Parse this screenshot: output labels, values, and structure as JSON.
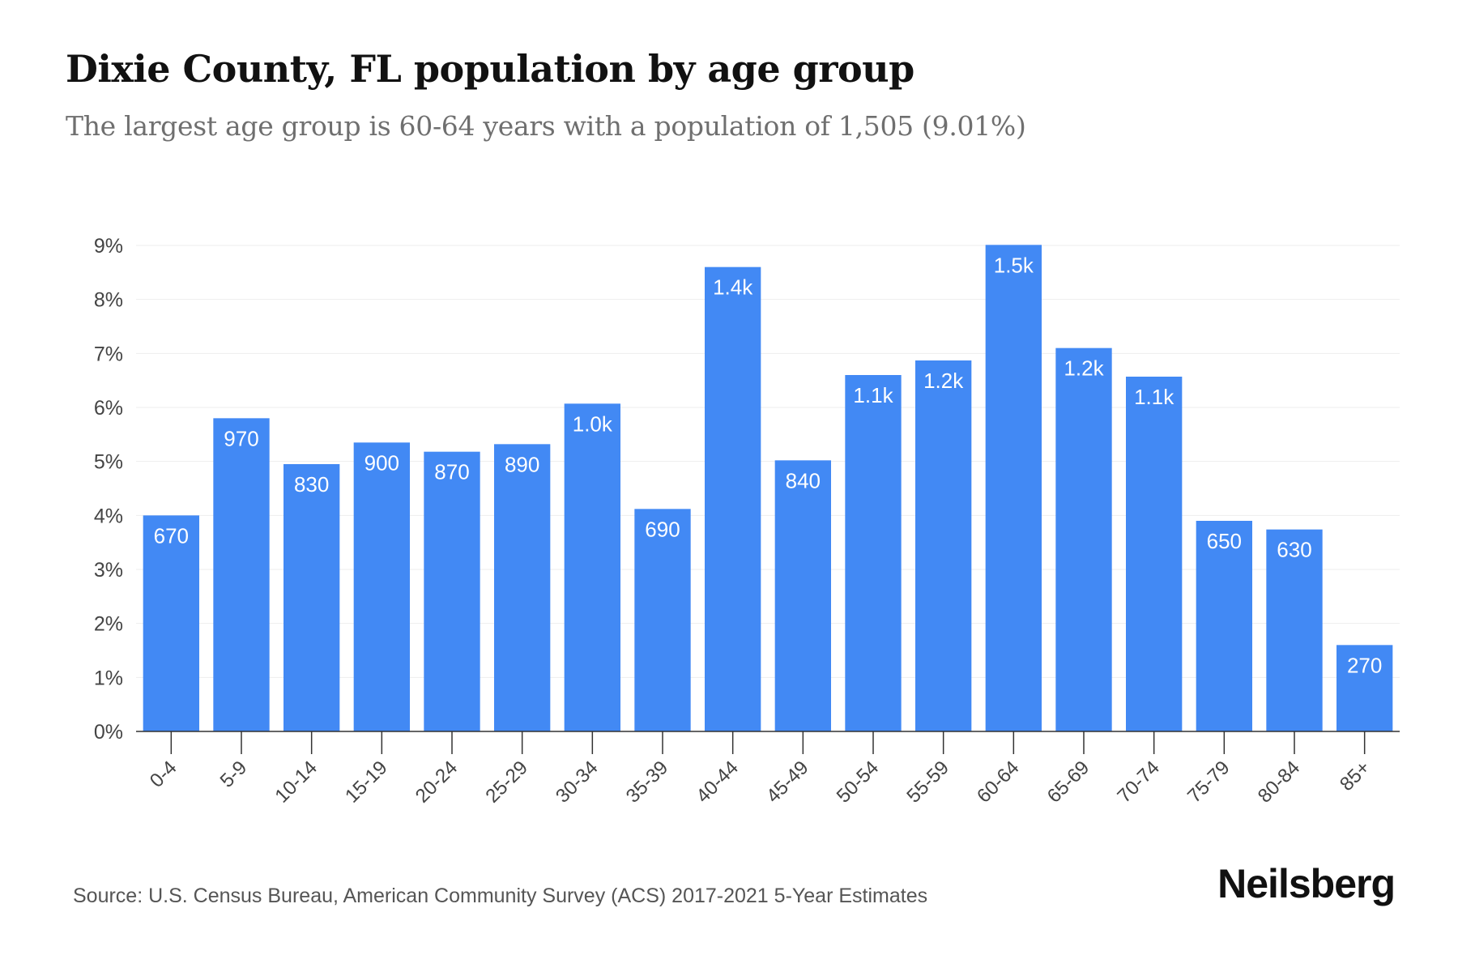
{
  "header": {
    "title": "Dixie County, FL population by age group",
    "subtitle": "The largest age group is 60-64 years with a population of 1,505 (9.01%)"
  },
  "footer": {
    "source": "Source: U.S. Census Bureau, American Community Survey (ACS) 2017-2021 5-Year Estimates",
    "brand": "Neilsberg"
  },
  "colors": {
    "bar": "#4289f4",
    "bar_label": "#ffffff",
    "axis": "#333333",
    "grid": "#eeeeee",
    "tick_text": "#444444"
  },
  "chart_data": {
    "type": "bar",
    "title": "Dixie County, FL population by age group",
    "subtitle": "The largest age group is 60-64 years with a population of 1,505 (9.01%)",
    "categories": [
      "0-4",
      "5-9",
      "10-14",
      "15-19",
      "20-24",
      "25-29",
      "30-34",
      "35-39",
      "40-44",
      "45-49",
      "50-54",
      "55-59",
      "60-64",
      "65-69",
      "70-74",
      "75-79",
      "80-84",
      "85+"
    ],
    "values": [
      4.0,
      5.8,
      4.95,
      5.35,
      5.18,
      5.32,
      6.07,
      4.12,
      8.6,
      5.02,
      6.6,
      6.87,
      9.01,
      7.1,
      6.57,
      3.9,
      3.74,
      1.6
    ],
    "data_labels": [
      "670",
      "970",
      "830",
      "900",
      "870",
      "890",
      "1.0k",
      "690",
      "1.4k",
      "840",
      "1.1k",
      "1.2k",
      "1.5k",
      "1.2k",
      "1.1k",
      "650",
      "630",
      "270"
    ],
    "y_ticks": [
      "0%",
      "1%",
      "2%",
      "3%",
      "4%",
      "5%",
      "6%",
      "7%",
      "8%",
      "9%"
    ],
    "xlabel": "",
    "ylabel": "",
    "ylim": [
      0,
      9
    ],
    "grid": true,
    "legend": "none"
  }
}
